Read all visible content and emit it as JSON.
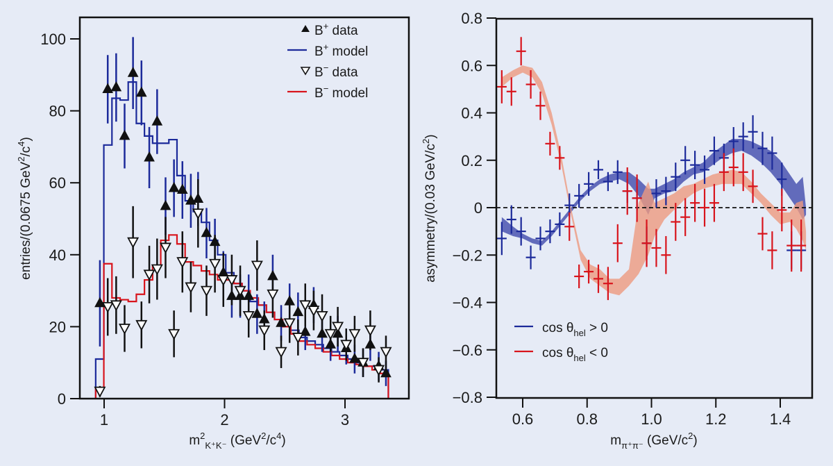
{
  "chart_data": [
    {
      "type": "scatter",
      "panel": "left",
      "title": "",
      "xlabel": "m²K⁺K⁻ (GeV²/c⁴)",
      "xlabel_parts": {
        "main": "m",
        "sup": "2",
        "sub": "K⁺K⁻",
        "units": " (GeV",
        "units_sup": "2",
        "units_mid": "/c",
        "units_sup2": "4",
        "units_end": ")"
      },
      "ylabel": "entries/(0.0675 GeV²/c⁴)",
      "ylabel_parts": {
        "main": "entries/(0.0675 GeV",
        "sup": "2",
        "mid": "/c",
        "sup2": "4",
        "end": ")"
      },
      "xlim": [
        0.8,
        3.74
      ],
      "ylim": [
        0,
        106
      ],
      "xticks": [
        1,
        2,
        3
      ],
      "xtick_labels": [
        "1",
        "2",
        "3"
      ],
      "yticks": [
        0,
        20,
        40,
        60,
        80,
        100
      ],
      "ytick_labels": [
        "0",
        "20",
        "40",
        "60",
        "80",
        "100"
      ],
      "legend": {
        "placement": "top-right",
        "entries": [
          {
            "label": "B⁺ data",
            "base": "B",
            "sup": "+",
            "rest": " data",
            "marker": "triangle-up",
            "color": "#111111"
          },
          {
            "label": "B⁺ model",
            "base": "B",
            "sup": "+",
            "rest": " model",
            "marker": "line",
            "color": "#1c2a9a"
          },
          {
            "label": "B⁻ data",
            "base": "B",
            "sup": "−",
            "rest": " data",
            "marker": "triangle-down",
            "color": "#111111"
          },
          {
            "label": "B⁻ model",
            "base": "B",
            "sup": "−",
            "rest": " model",
            "marker": "line",
            "color": "#d8141c"
          }
        ]
      },
      "bin_edges_start": 0.93,
      "bin_width": 0.0675,
      "series": [
        {
          "name": "B⁺ model",
          "type": "step",
          "color": "#1c2a9a",
          "values": [
            11,
            70.5,
            83.5,
            83,
            88,
            76.5,
            73,
            71,
            71,
            72,
            62,
            55,
            52,
            49,
            44,
            40,
            35,
            32,
            30,
            27,
            26,
            24,
            22,
            20,
            19,
            17,
            16,
            15,
            14,
            13,
            12,
            11,
            10,
            9,
            9,
            8
          ]
        },
        {
          "name": "B⁻ model",
          "type": "step",
          "color": "#d8141c",
          "values": [
            3,
            37.5,
            28,
            27.5,
            27,
            29,
            33,
            37,
            44,
            45.5,
            43,
            38,
            37,
            35.5,
            34.5,
            33,
            33,
            32,
            30,
            28,
            26,
            24,
            22,
            20,
            18,
            16,
            15,
            14,
            13,
            12,
            11,
            10,
            9.5,
            9,
            8,
            7
          ]
        },
        {
          "name": "B⁺ data",
          "type": "errorbar",
          "marker": "triangle-up",
          "color": "#111111",
          "errcolor": "#1c2a9a",
          "x": [
            0.965,
            1.03,
            1.1,
            1.17,
            1.24,
            1.31,
            1.375,
            1.44,
            1.51,
            1.58,
            1.65,
            1.72,
            1.78,
            1.85,
            1.92,
            1.99,
            2.06,
            2.13,
            2.2,
            2.27,
            2.33,
            2.4,
            2.47,
            2.54,
            2.61,
            2.67,
            2.74,
            2.81,
            2.88,
            2.94,
            3.01,
            3.08,
            3.15,
            3.21,
            3.28,
            3.34
          ],
          "y": [
            26.5,
            86,
            86.5,
            73,
            90.5,
            85,
            67,
            77,
            53.5,
            58.5,
            58,
            55,
            55.5,
            46,
            43.5,
            35,
            28.5,
            28.5,
            28.5,
            23.5,
            22,
            34,
            21,
            27,
            24,
            18.5,
            26,
            18,
            15,
            18,
            14,
            11,
            10,
            15,
            9,
            7
          ],
          "err": [
            12,
            9.5,
            9.5,
            9,
            10,
            9,
            8.5,
            9,
            8,
            8,
            8,
            7.5,
            7.5,
            7,
            6.5,
            6,
            6,
            6,
            6,
            5.5,
            5,
            6,
            5,
            5,
            5.5,
            5,
            5,
            5,
            4.5,
            5,
            4.5,
            4,
            4,
            4.5,
            4,
            3.5
          ]
        },
        {
          "name": "B⁻ data",
          "type": "errorbar",
          "marker": "triangle-down",
          "color": "#111111",
          "errcolor": "#111111",
          "x": [
            0.965,
            1.03,
            1.1,
            1.17,
            1.24,
            1.31,
            1.375,
            1.44,
            1.51,
            1.58,
            1.65,
            1.72,
            1.78,
            1.85,
            1.92,
            1.99,
            2.06,
            2.13,
            2.2,
            2.27,
            2.33,
            2.4,
            2.47,
            2.54,
            2.61,
            2.67,
            2.74,
            2.81,
            2.88,
            2.94,
            3.01,
            3.08,
            3.15,
            3.21,
            3.28,
            3.34
          ],
          "y": [
            2,
            25.5,
            26,
            19.5,
            43.5,
            20.5,
            34.5,
            36,
            42,
            18,
            38,
            31,
            51.5,
            30,
            37.5,
            33,
            33,
            30,
            23,
            37,
            19,
            29,
            13,
            21,
            17,
            26,
            24.5,
            23,
            18,
            20,
            15,
            18,
            10,
            19,
            8,
            13
          ],
          "err": [
            1.5,
            8,
            8,
            6.5,
            10,
            6.5,
            8,
            8.5,
            8.5,
            6.5,
            8.5,
            7,
            9.5,
            7,
            8,
            7.5,
            7,
            7,
            6,
            7,
            5.5,
            6.5,
            4.5,
            5.5,
            5,
            6,
            5.5,
            6,
            5,
            5.5,
            4.5,
            5,
            4,
            5.5,
            3.5,
            4.5
          ]
        }
      ]
    },
    {
      "type": "scatter",
      "panel": "right",
      "title": "",
      "xlabel": "mπ⁺π⁻ (GeV/c²)",
      "xlabel_parts": {
        "main": "m",
        "sub": "π⁺π⁻",
        "units": " (GeV/c",
        "units_sup": "2",
        "units_end": ")"
      },
      "ylabel": "asymmetry/(0.03 GeV/c²)",
      "ylabel_parts": {
        "main": "asymmetry/(0.03 GeV/c",
        "sup": "2",
        "end": ")"
      },
      "xlim": [
        0.518,
        1.499
      ],
      "ylim": [
        -0.8,
        0.8
      ],
      "xticks": [
        0.6,
        0.8,
        1.0,
        1.2,
        1.4
      ],
      "xtick_labels": [
        "0.6",
        "0.8",
        "1.0",
        "1.2",
        "1.4"
      ],
      "yticks": [
        -0.8,
        -0.6,
        -0.4,
        -0.2,
        0,
        0.2,
        0.4,
        0.6,
        0.8
      ],
      "ytick_labels": [
        "−0.8",
        "−0.6",
        "−0.4",
        "−0.2",
        "0",
        "0.2",
        "0.4",
        "0.6",
        "0.8"
      ],
      "reference_line": {
        "y": 0,
        "style": "dashed"
      },
      "legend": {
        "placement": "bottom-left",
        "entries": [
          {
            "label": "cos θhel > 0",
            "pre": "cos θ",
            "sub": "hel",
            "post": " > 0",
            "color": "#1c2a9a"
          },
          {
            "label": "cos θhel < 0",
            "pre": "cos θ",
            "sub": "hel",
            "post": " < 0",
            "color": "#d8141c"
          }
        ]
      },
      "series": [
        {
          "name": "cos θhel > 0 model band",
          "type": "band",
          "color": "#4a55b0",
          "x": [
            0.535,
            0.57,
            0.6,
            0.63,
            0.66,
            0.69,
            0.72,
            0.75,
            0.78,
            0.81,
            0.84,
            0.87,
            0.9,
            0.93,
            0.96,
            0.99,
            1.01,
            1.04,
            1.07,
            1.1,
            1.13,
            1.16,
            1.19,
            1.22,
            1.25,
            1.28,
            1.31,
            1.34,
            1.37,
            1.4,
            1.43,
            1.45,
            1.47,
            1.48
          ],
          "low": [
            -0.1,
            -0.12,
            -0.13,
            -0.15,
            -0.16,
            -0.12,
            -0.07,
            -0.02,
            0.03,
            0.07,
            0.1,
            0.11,
            0.12,
            0.1,
            0.05,
            -0.03,
            0.04,
            0.06,
            0.07,
            0.11,
            0.14,
            0.15,
            0.18,
            0.21,
            0.23,
            0.24,
            0.22,
            0.19,
            0.15,
            0.1,
            0.04,
            0.0,
            -0.05,
            -0.03
          ],
          "high": [
            -0.04,
            -0.08,
            -0.11,
            -0.13,
            -0.14,
            -0.1,
            -0.05,
            0.0,
            0.05,
            0.09,
            0.12,
            0.14,
            0.15,
            0.15,
            0.12,
            0.08,
            0.08,
            0.1,
            0.12,
            0.15,
            0.17,
            0.19,
            0.23,
            0.26,
            0.29,
            0.29,
            0.28,
            0.26,
            0.24,
            0.2,
            0.14,
            0.1,
            0.13,
            0.0
          ]
        },
        {
          "name": "cos θhel < 0 model band",
          "type": "band",
          "color": "#ee9a80",
          "x": [
            0.535,
            0.57,
            0.6,
            0.63,
            0.66,
            0.69,
            0.72,
            0.75,
            0.78,
            0.81,
            0.84,
            0.87,
            0.9,
            0.93,
            0.96,
            0.99,
            1.01,
            1.04,
            1.07,
            1.1,
            1.13,
            1.16,
            1.19,
            1.22,
            1.25,
            1.28,
            1.31,
            1.34,
            1.37,
            1.4,
            1.43,
            1.45,
            1.47,
            1.48
          ],
          "low": [
            0.51,
            0.55,
            0.57,
            0.55,
            0.48,
            0.35,
            0.18,
            -0.03,
            -0.22,
            -0.3,
            -0.33,
            -0.36,
            -0.37,
            -0.33,
            -0.28,
            -0.2,
            -0.12,
            -0.05,
            -0.01,
            0.03,
            0.06,
            0.08,
            0.09,
            0.1,
            0.1,
            0.1,
            0.06,
            0.02,
            -0.03,
            -0.07,
            -0.06,
            -0.09,
            -0.14,
            -0.18
          ],
          "high": [
            0.55,
            0.58,
            0.6,
            0.59,
            0.53,
            0.4,
            0.22,
            0.0,
            -0.18,
            -0.24,
            -0.26,
            -0.3,
            -0.3,
            -0.26,
            0.02,
            0.11,
            0.02,
            0.04,
            0.06,
            0.09,
            0.1,
            0.12,
            0.14,
            0.15,
            0.16,
            0.15,
            0.11,
            0.06,
            0.02,
            -0.02,
            -0.02,
            0.02,
            0.03,
            -0.1
          ]
        },
        {
          "name": "cos θhel > 0",
          "type": "errorbar",
          "color": "#1c2a9a",
          "x": [
            0.535,
            0.565,
            0.595,
            0.625,
            0.655,
            0.685,
            0.715,
            0.745,
            0.775,
            0.805,
            0.835,
            0.865,
            0.895,
            0.925,
            0.955,
            0.985,
            1.015,
            1.045,
            1.075,
            1.105,
            1.135,
            1.165,
            1.195,
            1.225,
            1.255,
            1.285,
            1.315,
            1.345,
            1.375,
            1.405,
            1.435,
            1.465
          ],
          "y": [
            -0.13,
            -0.05,
            -0.1,
            -0.21,
            -0.13,
            -0.1,
            -0.07,
            0.01,
            0.05,
            0.1,
            0.16,
            0.11,
            0.15,
            0.07,
            0.04,
            -0.15,
            0.06,
            0.07,
            0.13,
            0.2,
            0.18,
            0.16,
            0.24,
            0.21,
            0.28,
            0.3,
            0.32,
            0.25,
            0.23,
            0.12,
            -0.18,
            -0.18
          ],
          "err": [
            0.07,
            0.06,
            0.06,
            0.05,
            0.05,
            0.05,
            0.05,
            0.05,
            0.05,
            0.05,
            0.04,
            0.04,
            0.05,
            0.05,
            0.05,
            0.07,
            0.06,
            0.06,
            0.06,
            0.06,
            0.06,
            0.06,
            0.06,
            0.06,
            0.06,
            0.06,
            0.07,
            0.07,
            0.07,
            0.07,
            0.08,
            0.08
          ]
        },
        {
          "name": "cos θhel < 0",
          "type": "errorbar",
          "color": "#d8141c",
          "x": [
            0.535,
            0.565,
            0.595,
            0.625,
            0.655,
            0.685,
            0.715,
            0.745,
            0.775,
            0.805,
            0.835,
            0.865,
            0.895,
            0.925,
            0.955,
            0.985,
            1.015,
            1.045,
            1.075,
            1.105,
            1.135,
            1.165,
            1.195,
            1.225,
            1.255,
            1.285,
            1.315,
            1.345,
            1.375,
            1.405,
            1.435,
            1.465
          ],
          "y": [
            0.51,
            0.49,
            0.66,
            0.52,
            0.43,
            0.27,
            0.21,
            -0.08,
            -0.29,
            -0.27,
            -0.3,
            -0.32,
            -0.15,
            0.07,
            0.04,
            -0.15,
            -0.17,
            -0.2,
            -0.06,
            -0.04,
            0.02,
            0.0,
            0.02,
            0.15,
            0.17,
            0.15,
            0.09,
            -0.11,
            -0.18,
            -0.01,
            -0.16,
            -0.16
          ],
          "err": [
            0.07,
            0.06,
            0.06,
            0.06,
            0.06,
            0.05,
            0.05,
            0.06,
            0.05,
            0.05,
            0.06,
            0.07,
            0.08,
            0.1,
            0.1,
            0.1,
            0.08,
            0.08,
            0.08,
            0.08,
            0.08,
            0.08,
            0.08,
            0.08,
            0.08,
            0.08,
            0.07,
            0.07,
            0.08,
            0.09,
            0.11,
            0.11
          ]
        }
      ]
    }
  ]
}
